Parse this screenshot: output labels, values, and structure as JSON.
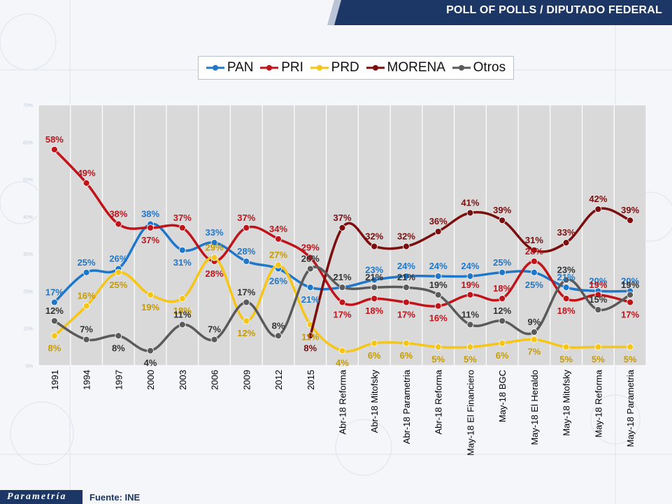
{
  "header": {
    "title": "POLL OF POLLS /  DIPUTADO FEDERAL"
  },
  "footer": {
    "logo_text": "Parametría",
    "source": "Fuente: INE"
  },
  "colors": {
    "PAN": "#1f77c9",
    "PRI": "#c0141b",
    "PRD": "#f5c518",
    "MORENA": "#7a0d0d",
    "Otros": "#5a5a5a",
    "header": "#1c3766",
    "plot_bg": "#d9d9d9"
  },
  "chart_data": {
    "type": "line",
    "title": "",
    "xlabel": "",
    "ylabel": "",
    "ylim": [
      0,
      0.7
    ],
    "y_ticks": [
      "0%",
      "10%",
      "20%",
      "30%",
      "40%",
      "50%",
      "60%",
      "70%"
    ],
    "grid": "vertical",
    "legend_position": "top",
    "categories": [
      "1991",
      "1994",
      "1997",
      "2000",
      "2003",
      "2006",
      "2009",
      "2012",
      "2015",
      "Abr-18 Reforma",
      "Abr-18 Mitofsky",
      "Abr-18 Parametria",
      "Abr-18 Reforma",
      "May-18 El Financiero",
      "May-18 BGC",
      "May-18 El Heraldo",
      "May-18 Mitofsky",
      "May-18 Reforma",
      "May-18 Parametria"
    ],
    "series": [
      {
        "name": "PAN",
        "values": [
          17,
          25,
          26,
          38,
          31,
          33,
          28,
          26,
          21,
          21,
          23,
          24,
          24,
          24,
          25,
          25,
          21,
          20,
          20
        ],
        "labels": [
          "17%",
          "25%",
          "26%",
          "38%",
          "31%",
          "33%",
          "28%",
          "26%",
          "21%",
          "",
          "23%",
          "24%",
          "24%",
          "24%",
          "25%",
          "25%",
          "21%",
          "20%",
          "20%"
        ]
      },
      {
        "name": "PRI",
        "values": [
          58,
          49,
          38,
          37,
          37,
          28,
          37,
          34,
          29,
          17,
          18,
          17,
          16,
          19,
          18,
          28,
          18,
          19,
          17
        ],
        "labels": [
          "58%",
          "49%",
          "38%",
          "37%",
          "37%",
          "28%",
          "37%",
          "34%",
          "29%",
          "17%",
          "18%",
          "17%",
          "16%",
          "19%",
          "18%",
          "28%",
          "18%",
          "19%",
          "17%"
        ]
      },
      {
        "name": "PRD",
        "values": [
          8,
          16,
          25,
          19,
          18,
          29,
          12,
          27,
          11,
          4,
          6,
          6,
          5,
          5,
          6,
          7,
          5,
          5,
          5
        ],
        "labels": [
          "8%",
          "16%",
          "25%",
          "19%",
          "18%",
          "29%",
          "12%",
          "27%",
          "11%",
          "4%",
          "6%",
          "6%",
          "5%",
          "5%",
          "6%",
          "7%",
          "5%",
          "5%",
          "5%"
        ]
      },
      {
        "name": "MORENA",
        "values": [
          null,
          null,
          null,
          null,
          null,
          null,
          null,
          null,
          8,
          37,
          32,
          32,
          36,
          41,
          39,
          31,
          33,
          42,
          39
        ],
        "labels": [
          "",
          "",
          "",
          "",
          "",
          "",
          "",
          "",
          "8%",
          "37%",
          "32%",
          "32%",
          "36%",
          "41%",
          "39%",
          "31%",
          "33%",
          "42%",
          "39%"
        ]
      },
      {
        "name": "Otros",
        "values": [
          12,
          7,
          8,
          4,
          11,
          7,
          17,
          8,
          26,
          21,
          21,
          21,
          19,
          11,
          12,
          9,
          23,
          15,
          19
        ],
        "labels": [
          "12%",
          "7%",
          "8%",
          "4%",
          "11%",
          "7%",
          "17%",
          "8%",
          "26%",
          "21%",
          "21%",
          "21%",
          "19%",
          "11%",
          "12%",
          "9%",
          "23%",
          "15%",
          "19%"
        ]
      }
    ]
  }
}
